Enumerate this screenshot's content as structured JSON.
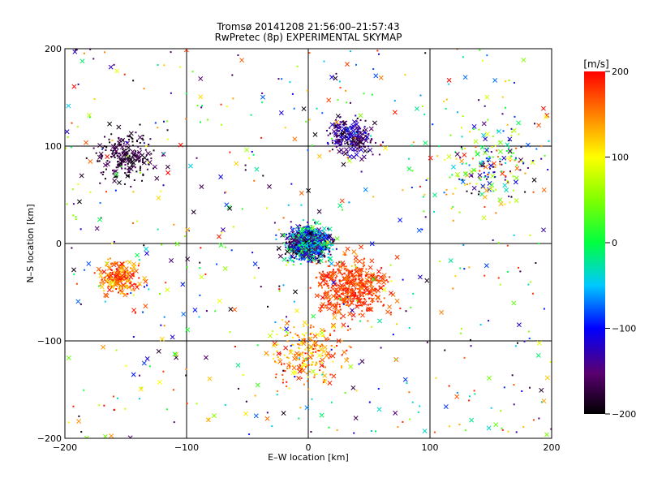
{
  "chart_data": {
    "type": "scatter",
    "title": "Tromsø 20141208 21:56:00–21:57:43",
    "subtitle": "RwPretec (8p) EXPERIMENTAL SKYMAP",
    "xlabel": "E–W location [km]",
    "ylabel": "N–S location [km]",
    "xlim": [
      -200,
      200
    ],
    "ylim": [
      -200,
      200
    ],
    "x_ticks": [
      -200,
      -100,
      0,
      100,
      200
    ],
    "y_ticks": [
      -200,
      -100,
      0,
      100,
      200
    ],
    "grid": true,
    "markers": [
      "x",
      "dot"
    ],
    "colorbar": {
      "label": "[m/s]",
      "range": [
        -200,
        200
      ],
      "ticks": [
        200,
        100,
        0,
        -100,
        -200
      ],
      "colormap": "rainbow (black-purple-blue-cyan-green-yellow-red)"
    },
    "clusters": [
      {
        "region": "center",
        "x": 0,
        "y": 0,
        "spread_km": 18,
        "velocity_range": [
          -200,
          20
        ],
        "density": "very high"
      },
      {
        "region": "southeast",
        "x": 35,
        "y": -45,
        "spread_km": 30,
        "velocity_range": [
          150,
          200
        ],
        "density": "high"
      },
      {
        "region": "west",
        "x": -155,
        "y": -35,
        "spread_km": 16,
        "velocity_range": [
          110,
          200
        ],
        "density": "moderate"
      },
      {
        "region": "south",
        "x": 0,
        "y": -110,
        "spread_km": 35,
        "velocity_range": [
          90,
          200
        ],
        "density": "moderate"
      },
      {
        "region": "northwest",
        "x": -150,
        "y": 90,
        "spread_km": 25,
        "velocity_range": [
          -200,
          -150
        ],
        "density": "moderate"
      },
      {
        "region": "north",
        "x": 35,
        "y": 110,
        "spread_km": 20,
        "velocity_range": [
          -200,
          -100
        ],
        "density": "moderate"
      },
      {
        "region": "northeast",
        "x": 150,
        "y": 80,
        "spread_km": 40,
        "velocity_range": [
          -200,
          200
        ],
        "density": "low"
      },
      {
        "region": "scattered",
        "x": 0,
        "y": 0,
        "spread_km": 200,
        "velocity_range": [
          -200,
          200
        ],
        "density": "low"
      }
    ]
  }
}
